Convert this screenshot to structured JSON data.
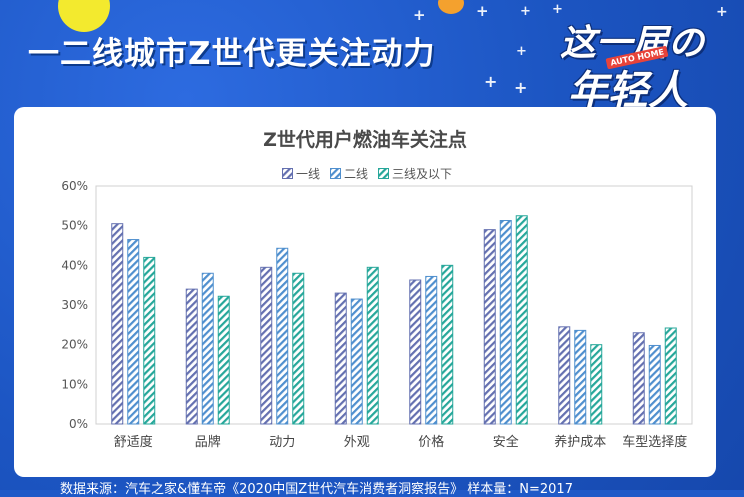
{
  "headline": "一二线城市Z世代更关注动力",
  "logo": {
    "line1": "这一届の",
    "line2": "年轻人",
    "badge": "AUTO HOME"
  },
  "footer": "数据来源：汽车之家&懂车帝《2020中国Z世代汽车消费者洞察报告》 样本量：N=2017",
  "colors": {
    "background": "#1f5ac8",
    "series_1": "#6470b0",
    "series_2": "#4f8fce",
    "series_3": "#26a79a"
  },
  "chart_data": {
    "type": "bar",
    "title": "Z世代用户燃油车关注点",
    "categories": [
      "舒适度",
      "品牌",
      "动力",
      "外观",
      "价格",
      "安全",
      "养护成本",
      "车型选择度"
    ],
    "series": [
      {
        "name": "一线",
        "values": [
          50.5,
          34,
          39.5,
          33,
          36.3,
          49,
          24.5,
          23
        ]
      },
      {
        "name": "二线",
        "values": [
          46.5,
          38,
          44.3,
          31.5,
          37.2,
          51.3,
          23.6,
          19.8
        ]
      },
      {
        "name": "三线及以下",
        "values": [
          42,
          32.2,
          38,
          39.5,
          40,
          52.5,
          20,
          24.2
        ]
      }
    ],
    "y_ticks": [
      "0%",
      "10%",
      "20%",
      "30%",
      "40%",
      "50%",
      "60%"
    ],
    "ylim": [
      0,
      60
    ],
    "legend_position": "top",
    "pattern": "diagonal-hatch"
  }
}
